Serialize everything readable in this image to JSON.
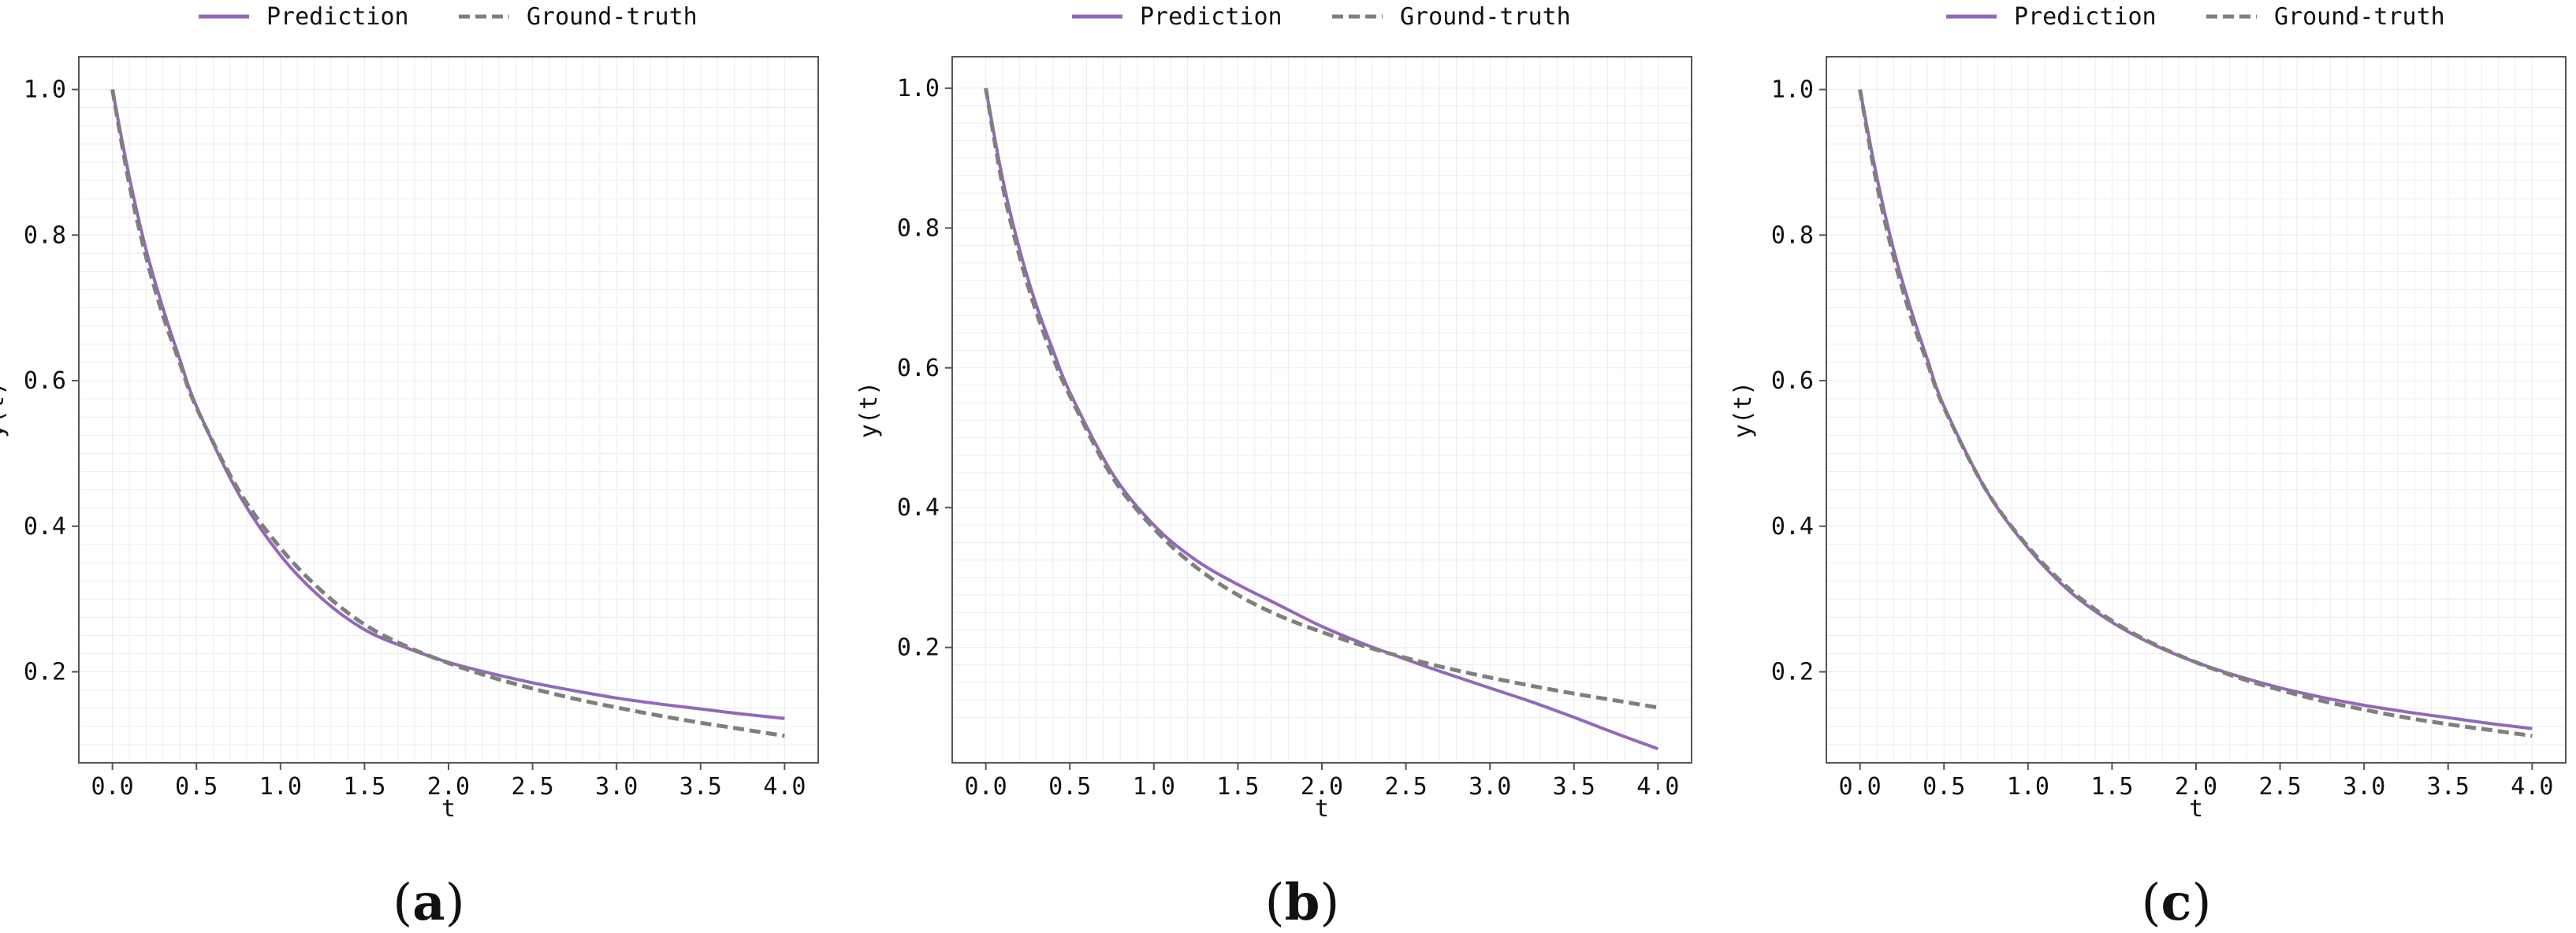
{
  "legend": {
    "prediction_label": "Prediction",
    "groundtruth_label": "Ground-truth"
  },
  "colors": {
    "prediction": "#9467bd",
    "groundtruth": "#7f7f7f",
    "axes": "#555555",
    "grid": "#ececec"
  },
  "chart_data": [
    {
      "type": "line",
      "panel_label": "a",
      "xlabel": "t",
      "ylabel": "y(t)",
      "xlim": [
        -0.2,
        4.2
      ],
      "ylim": [
        0.075,
        1.045
      ],
      "xticks": [
        0.0,
        0.5,
        1.0,
        1.5,
        2.0,
        2.5,
        3.0,
        3.5,
        4.0
      ],
      "xtick_labels": [
        "0.0",
        "0.5",
        "1.0",
        "1.5",
        "2.0",
        "2.5",
        "3.0",
        "3.5",
        "4.0"
      ],
      "yticks": [
        0.2,
        0.4,
        0.6,
        0.8,
        1.0
      ],
      "ytick_labels": [
        "0.2",
        "0.4",
        "0.6",
        "0.8",
        "1.0"
      ],
      "grid": true,
      "legend_position": "top-center",
      "series": [
        {
          "name": "Prediction",
          "style": "solid",
          "x": [
            0.0,
            0.1,
            0.2,
            0.3,
            0.4,
            0.5,
            0.75,
            1.0,
            1.25,
            1.5,
            1.75,
            2.0,
            2.25,
            2.5,
            2.75,
            3.0,
            3.25,
            3.5,
            3.75,
            4.0
          ],
          "y": [
            1.0,
            0.88,
            0.78,
            0.7,
            0.63,
            0.565,
            0.445,
            0.36,
            0.3,
            0.258,
            0.233,
            0.213,
            0.198,
            0.185,
            0.174,
            0.164,
            0.156,
            0.149,
            0.142,
            0.136
          ]
        },
        {
          "name": "Ground-truth",
          "style": "dashed",
          "x": [
            0.0,
            0.1,
            0.2,
            0.3,
            0.4,
            0.5,
            0.75,
            1.0,
            1.25,
            1.5,
            1.75,
            2.0,
            2.25,
            2.5,
            2.75,
            3.0,
            3.25,
            3.5,
            3.75,
            4.0
          ],
          "y": [
            1.0,
            0.87,
            0.77,
            0.69,
            0.625,
            0.563,
            0.45,
            0.37,
            0.31,
            0.265,
            0.235,
            0.212,
            0.193,
            0.177,
            0.163,
            0.151,
            0.14,
            0.13,
            0.121,
            0.112
          ]
        }
      ]
    },
    {
      "type": "line",
      "panel_label": "b",
      "xlabel": "t",
      "ylabel": "y(t)",
      "xlim": [
        -0.2,
        4.2
      ],
      "ylim": [
        0.035,
        1.045
      ],
      "xticks": [
        0.0,
        0.5,
        1.0,
        1.5,
        2.0,
        2.5,
        3.0,
        3.5,
        4.0
      ],
      "xtick_labels": [
        "0.0",
        "0.5",
        "1.0",
        "1.5",
        "2.0",
        "2.5",
        "3.0",
        "3.5",
        "4.0"
      ],
      "yticks": [
        0.2,
        0.4,
        0.6,
        0.8,
        1.0
      ],
      "ytick_labels": [
        "0.2",
        "0.4",
        "0.6",
        "0.8",
        "1.0"
      ],
      "grid": true,
      "legend_position": "top-center",
      "series": [
        {
          "name": "Prediction",
          "style": "solid",
          "x": [
            0.0,
            0.1,
            0.2,
            0.3,
            0.4,
            0.5,
            0.75,
            1.0,
            1.25,
            1.5,
            1.75,
            2.0,
            2.25,
            2.5,
            2.75,
            3.0,
            3.25,
            3.5,
            3.75,
            4.0
          ],
          "y": [
            1.0,
            0.87,
            0.77,
            0.69,
            0.625,
            0.565,
            0.45,
            0.375,
            0.325,
            0.29,
            0.26,
            0.23,
            0.205,
            0.183,
            0.162,
            0.142,
            0.122,
            0.1,
            0.077,
            0.055
          ]
        },
        {
          "name": "Ground-truth",
          "style": "dashed",
          "x": [
            0.0,
            0.1,
            0.2,
            0.3,
            0.4,
            0.5,
            0.75,
            1.0,
            1.25,
            1.5,
            1.75,
            2.0,
            2.25,
            2.5,
            2.75,
            3.0,
            3.25,
            3.5,
            3.75,
            4.0
          ],
          "y": [
            1.0,
            0.86,
            0.76,
            0.68,
            0.615,
            0.56,
            0.445,
            0.37,
            0.315,
            0.275,
            0.245,
            0.222,
            0.202,
            0.185,
            0.17,
            0.157,
            0.145,
            0.134,
            0.124,
            0.114
          ]
        }
      ]
    },
    {
      "type": "line",
      "panel_label": "c",
      "xlabel": "t",
      "ylabel": "y(t)",
      "xlim": [
        -0.2,
        4.2
      ],
      "ylim": [
        0.075,
        1.045
      ],
      "xticks": [
        0.0,
        0.5,
        1.0,
        1.5,
        2.0,
        2.5,
        3.0,
        3.5,
        4.0
      ],
      "xtick_labels": [
        "0.0",
        "0.5",
        "1.0",
        "1.5",
        "2.0",
        "2.5",
        "3.0",
        "3.5",
        "4.0"
      ],
      "yticks": [
        0.2,
        0.4,
        0.6,
        0.8,
        1.0
      ],
      "ytick_labels": [
        "0.2",
        "0.4",
        "0.6",
        "0.8",
        "1.0"
      ],
      "grid": true,
      "legend_position": "top-center",
      "series": [
        {
          "name": "Prediction",
          "style": "solid",
          "x": [
            0.0,
            0.1,
            0.2,
            0.3,
            0.4,
            0.5,
            0.75,
            1.0,
            1.25,
            1.5,
            1.75,
            2.0,
            2.25,
            2.5,
            2.75,
            3.0,
            3.25,
            3.5,
            3.75,
            4.0
          ],
          "y": [
            1.0,
            0.88,
            0.78,
            0.7,
            0.63,
            0.565,
            0.45,
            0.37,
            0.31,
            0.268,
            0.237,
            0.213,
            0.194,
            0.178,
            0.165,
            0.154,
            0.145,
            0.137,
            0.129,
            0.122
          ]
        },
        {
          "name": "Ground-truth",
          "style": "dashed",
          "x": [
            0.0,
            0.1,
            0.2,
            0.3,
            0.4,
            0.5,
            0.75,
            1.0,
            1.25,
            1.5,
            1.75,
            2.0,
            2.25,
            2.5,
            2.75,
            3.0,
            3.25,
            3.5,
            3.75,
            4.0
          ],
          "y": [
            1.0,
            0.87,
            0.77,
            0.69,
            0.625,
            0.563,
            0.45,
            0.372,
            0.313,
            0.27,
            0.238,
            0.213,
            0.192,
            0.175,
            0.16,
            0.148,
            0.137,
            0.128,
            0.12,
            0.112
          ]
        }
      ]
    }
  ]
}
